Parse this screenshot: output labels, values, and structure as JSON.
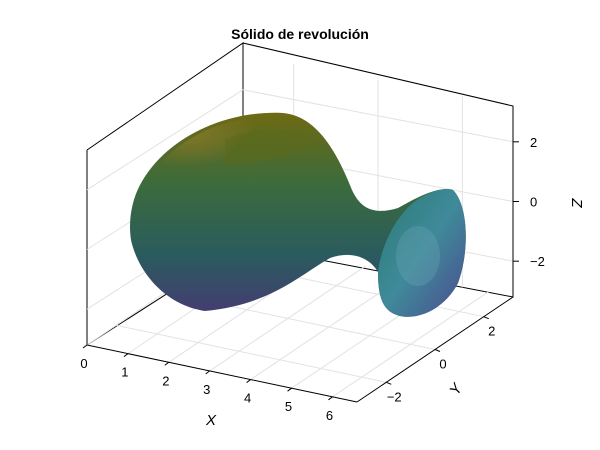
{
  "chart_data": {
    "type": "surface3d",
    "title": "Sólido de revolución",
    "xlabel": "X",
    "ylabel": "Y",
    "zlabel": "Z",
    "x_ticks": [
      0,
      1,
      2,
      3,
      4,
      5,
      6
    ],
    "y_ticks": [
      -2,
      0,
      2
    ],
    "z_ticks": [
      -2,
      0,
      2
    ],
    "x_range": [
      0,
      6.6
    ],
    "y_range": [
      -3.2,
      3.2
    ],
    "z_range": [
      -3.2,
      3.2
    ],
    "grid": true,
    "colormap": "viridis",
    "surface": {
      "description_free": true,
      "axis": "x",
      "x_start": 0,
      "x_end": 6.28,
      "radius_profile": "r(x) = 2 + cos(x)",
      "x_samples": [
        0,
        0.5,
        1,
        1.5,
        2,
        2.5,
        3,
        3.5,
        4,
        4.5,
        5,
        5.5,
        6,
        6.28
      ],
      "radius_samples": [
        3.0,
        2.88,
        2.54,
        2.07,
        1.58,
        1.2,
        1.01,
        1.06,
        1.35,
        1.79,
        2.28,
        2.71,
        2.96,
        3.0
      ]
    }
  }
}
